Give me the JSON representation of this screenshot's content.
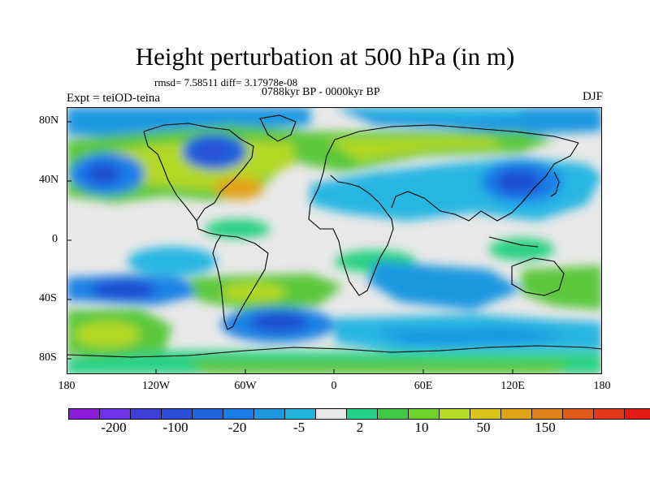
{
  "title": "Height perturbation at 500 hPa (in m)",
  "stats": "rmsd= 7.58511 diff= 3.17978e-08",
  "period": "0788kyr BP - 0000kyr BP",
  "experiment": "Expt = teiOD-teina",
  "season": "DJF",
  "y_ticks": [
    "80N",
    "40N",
    "0",
    "40S",
    "80S"
  ],
  "x_ticks": [
    "180",
    "120W",
    "60W",
    "0",
    "60E",
    "120E",
    "180"
  ],
  "colorbar": {
    "colors": [
      "#8c1bdc",
      "#6f32e8",
      "#3f3fd9",
      "#2a4fd6",
      "#1e64dc",
      "#1a7ee8",
      "#1e98e0",
      "#20b4de",
      "#e8e8e8",
      "#22d08a",
      "#3ec844",
      "#6ed22a",
      "#b4dc24",
      "#d8c41c",
      "#e0a418",
      "#e08018",
      "#e05a18",
      "#e03818",
      "#e01a14"
    ],
    "labels": [
      "-200",
      "-100",
      "-20",
      "-5",
      "2",
      "10",
      "50",
      "150"
    ]
  },
  "fill": {
    "blue_dark": "#1e4fd2",
    "blue_mid": "#1a82e4",
    "blue_light": "#26b6e2",
    "green": "#2bd184",
    "lime": "#5cc83c",
    "yellow_green": "#b4d826",
    "orange": "#e0a41a",
    "neutral": "#e8e8e8"
  }
}
